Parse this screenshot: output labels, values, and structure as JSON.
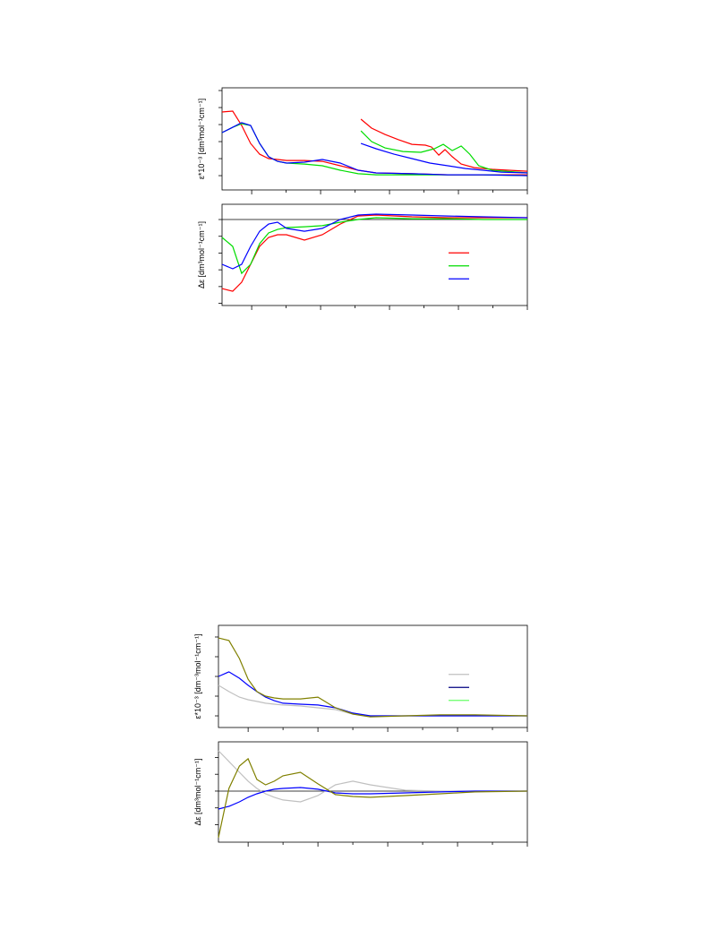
{
  "chart_data": [
    {
      "type": "line",
      "ylabel": "ε*10⁻³ [dm³mol⁻¹cm⁻¹]",
      "x": [
        0.14,
        0.45,
        0.71,
        0.97,
        1.23,
        1.49,
        1.75,
        2.01,
        2.53,
        3.05,
        3.57,
        4.09,
        4.61,
        5.65,
        6.69,
        7.72,
        9.0
      ],
      "xlim": [
        0.14,
        9
      ],
      "xticks": [
        1,
        2,
        3,
        4,
        5,
        6,
        7,
        8,
        9
      ],
      "ylim": [
        -0.84,
        5.16
      ],
      "yticks": [
        0,
        1,
        2,
        3,
        4,
        5
      ],
      "series": [
        {
          "color": "#ff0000",
          "values": [
            3.74,
            3.79,
            2.95,
            1.89,
            1.26,
            1.0,
            0.95,
            0.89,
            0.89,
            0.84,
            0.58,
            0.32,
            0.16,
            0.11,
            0.05,
            0.05,
            0.05
          ]
        },
        {
          "color": "#00dd00",
          "values": [
            2.53,
            2.84,
            3.05,
            2.95,
            1.89,
            1.11,
            0.84,
            0.74,
            0.68,
            0.58,
            0.32,
            0.11,
            0.05,
            0.05,
            0.05,
            0.05,
            0
          ]
        },
        {
          "color": "#0000ff",
          "values": [
            2.53,
            2.84,
            3.11,
            2.95,
            1.89,
            1.11,
            0.84,
            0.74,
            0.79,
            0.95,
            0.74,
            0.32,
            0.16,
            0.11,
            0.05,
            0.05,
            0
          ]
        },
        {
          "color": "#ff0000",
          "x": [
            4.17,
            4.48,
            4.87,
            5.26,
            5.65,
            6.04,
            6.22,
            6.43,
            6.61,
            6.82,
            7.08,
            7.46,
            7.98,
            9.0
          ],
          "values": [
            3.32,
            2.79,
            2.42,
            2.11,
            1.84,
            1.79,
            1.68,
            1.21,
            1.53,
            1.11,
            0.68,
            0.47,
            0.37,
            0.26
          ]
        },
        {
          "color": "#00dd00",
          "x": [
            4.17,
            4.48,
            4.87,
            5.39,
            5.91,
            6.3,
            6.56,
            6.82,
            7.08,
            7.33,
            7.59,
            7.98,
            9.0
          ],
          "values": [
            2.63,
            2.0,
            1.63,
            1.42,
            1.37,
            1.58,
            1.84,
            1.47,
            1.74,
            1.26,
            0.58,
            0.32,
            0.16
          ]
        },
        {
          "color": "#0000ff",
          "x": [
            4.17,
            4.61,
            5.13,
            5.65,
            6.17,
            6.69,
            7.21,
            7.72,
            8.24,
            9.0
          ],
          "values": [
            1.89,
            1.58,
            1.26,
            1.0,
            0.74,
            0.58,
            0.42,
            0.32,
            0.21,
            0.16
          ]
        }
      ]
    },
    {
      "type": "line",
      "ylabel": "Δε [dm³mol⁻¹cm⁻¹]",
      "zero_line": true,
      "legend": "right",
      "x": [
        0.14,
        0.45,
        0.71,
        0.97,
        1.23,
        1.49,
        1.75,
        2.01,
        2.53,
        3.05,
        3.57,
        4.09,
        4.61,
        5.65,
        6.69,
        7.72,
        9.0
      ],
      "xlim": [
        0.14,
        9
      ],
      "xticks": [
        1,
        2,
        3,
        4,
        5,
        6,
        7,
        8,
        9
      ],
      "ylim": [
        -5.13,
        0.91
      ],
      "yticks": [
        -5,
        -4,
        -3,
        -2,
        -1,
        0
      ],
      "series": [
        {
          "color": "#ff0000",
          "values": [
            -4.12,
            -4.28,
            -3.74,
            -2.67,
            -1.6,
            -1.07,
            -0.91,
            -0.91,
            -1.23,
            -0.91,
            -0.27,
            0.21,
            0.27,
            0.16,
            0.11,
            0.11,
            0.11
          ]
        },
        {
          "color": "#00dd00",
          "values": [
            -1.07,
            -1.6,
            -3.21,
            -2.67,
            -1.44,
            -0.8,
            -0.59,
            -0.48,
            -0.43,
            -0.37,
            -0.16,
            0,
            0.11,
            0.05,
            0.05,
            0,
            0
          ]
        },
        {
          "color": "#0000ff",
          "values": [
            -2.67,
            -2.94,
            -2.67,
            -1.6,
            -0.7,
            -0.27,
            -0.16,
            -0.53,
            -0.7,
            -0.53,
            0,
            0.27,
            0.32,
            0.27,
            0.21,
            0.16,
            0.11
          ]
        }
      ]
    },
    {
      "type": "line",
      "ylabel": "ε*10⁻³ [dm⁻³mol⁻¹cm⁻¹]",
      "legend": "right",
      "legend_colors": [
        "#c0c0c0",
        "#000080",
        "#66ff66"
      ],
      "x": [
        0.15,
        0.45,
        0.75,
        1.0,
        1.25,
        1.5,
        1.75,
        2.0,
        2.5,
        3.0,
        3.5,
        4.0,
        4.5,
        5.5,
        6.5,
        7.5,
        9.0
      ],
      "xlim": [
        0.15,
        9
      ],
      "xticks": [
        1,
        2,
        3,
        4,
        5,
        6,
        7,
        8,
        9
      ],
      "ylim": [
        -0.59,
        4.59
      ],
      "yticks": [
        0,
        1,
        2,
        3,
        4
      ],
      "series": [
        {
          "color": "#c0c0c0",
          "values": [
            1.55,
            1.23,
            0.95,
            0.82,
            0.73,
            0.64,
            0.59,
            0.55,
            0.5,
            0.41,
            0.32,
            0.09,
            0,
            0,
            0,
            0,
            0
          ]
        },
        {
          "color": "#0000ff",
          "values": [
            2.0,
            2.23,
            1.91,
            1.55,
            1.23,
            0.95,
            0.77,
            0.64,
            0.59,
            0.55,
            0.41,
            0.14,
            0,
            0,
            0,
            0,
            0
          ]
        },
        {
          "color": "#808000",
          "values": [
            3.95,
            3.82,
            2.91,
            1.86,
            1.23,
            1.0,
            0.91,
            0.86,
            0.86,
            0.95,
            0.41,
            0.09,
            -0.05,
            0,
            0.05,
            0.05,
            0
          ]
        }
      ]
    },
    {
      "type": "line",
      "ylabel": "Δε [dm³mol⁻¹cm⁻¹]",
      "zero_line": true,
      "x": [
        0.15,
        0.45,
        0.75,
        1.0,
        1.25,
        1.5,
        1.75,
        2.0,
        2.5,
        3.0,
        3.5,
        4.0,
        4.5,
        5.5,
        6.5,
        7.5,
        9.0
      ],
      "xlim": [
        0.15,
        9
      ],
      "xticks": [
        1,
        2,
        3,
        4,
        5,
        6,
        7,
        8,
        9
      ],
      "ylim": [
        -3.04,
        2.93
      ],
      "yticks": [
        -2,
        -1,
        0,
        1,
        2
      ],
      "series": [
        {
          "color": "#c0c0c0",
          "values": [
            2.4,
            1.76,
            1.12,
            0.59,
            0.16,
            -0.16,
            -0.37,
            -0.53,
            -0.64,
            -0.27,
            0.37,
            0.59,
            0.37,
            0.05,
            0,
            0,
            0
          ]
        },
        {
          "color": "#0000ff",
          "values": [
            -1.07,
            -0.91,
            -0.64,
            -0.37,
            -0.16,
            0,
            0.11,
            0.16,
            0.21,
            0.11,
            -0.11,
            -0.16,
            -0.16,
            -0.11,
            -0.05,
            0,
            0
          ]
        },
        {
          "color": "#808000",
          "values": [
            -2.77,
            0.16,
            1.49,
            1.92,
            0.69,
            0.37,
            0.59,
            0.91,
            1.12,
            0.43,
            -0.21,
            -0.32,
            -0.37,
            -0.27,
            -0.16,
            -0.05,
            0
          ]
        }
      ]
    }
  ]
}
